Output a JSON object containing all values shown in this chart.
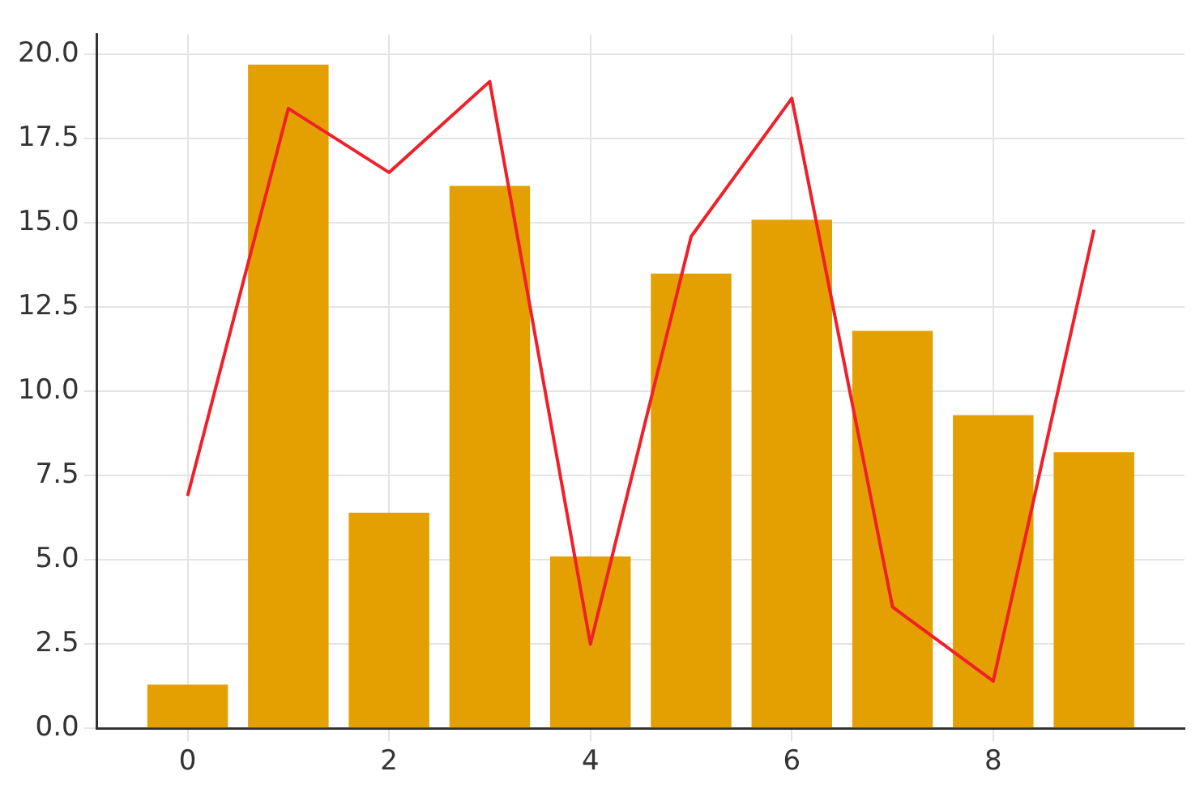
{
  "chart_data": {
    "type": "bar",
    "x": [
      0,
      1,
      2,
      3,
      4,
      5,
      6,
      7,
      8,
      9
    ],
    "series": [
      {
        "color": "#e49f00",
        "values": [
          1.3,
          19.7,
          6.4,
          16.1,
          5.1,
          13.5,
          15.1,
          11.8,
          9.3,
          8.2
        ]
      },
      {
        "type": "line",
        "color": "#f0202a",
        "values": [
          6.9,
          18.4,
          16.5,
          19.2,
          2.5,
          14.6,
          18.7,
          3.6,
          1.4,
          14.8
        ]
      }
    ],
    "xlim": [
      -0.9,
      9.9
    ],
    "xticks": [
      0,
      2,
      4,
      6,
      8
    ],
    "ylim": [
      0,
      20.6
    ],
    "yticks": [
      {
        "value": 0,
        "label": "0.0"
      },
      {
        "value": 2.5,
        "label": "2.5"
      },
      {
        "value": 5,
        "label": "5.0"
      },
      {
        "value": 7.5,
        "label": "7.5"
      },
      {
        "value": 10,
        "label": "10.0"
      },
      {
        "value": 12.5,
        "label": "12.5"
      },
      {
        "value": 15,
        "label": "15.0"
      },
      {
        "value": 17.5,
        "label": "17.5"
      },
      {
        "value": 20,
        "label": "20.0"
      }
    ],
    "grid": true
  }
}
